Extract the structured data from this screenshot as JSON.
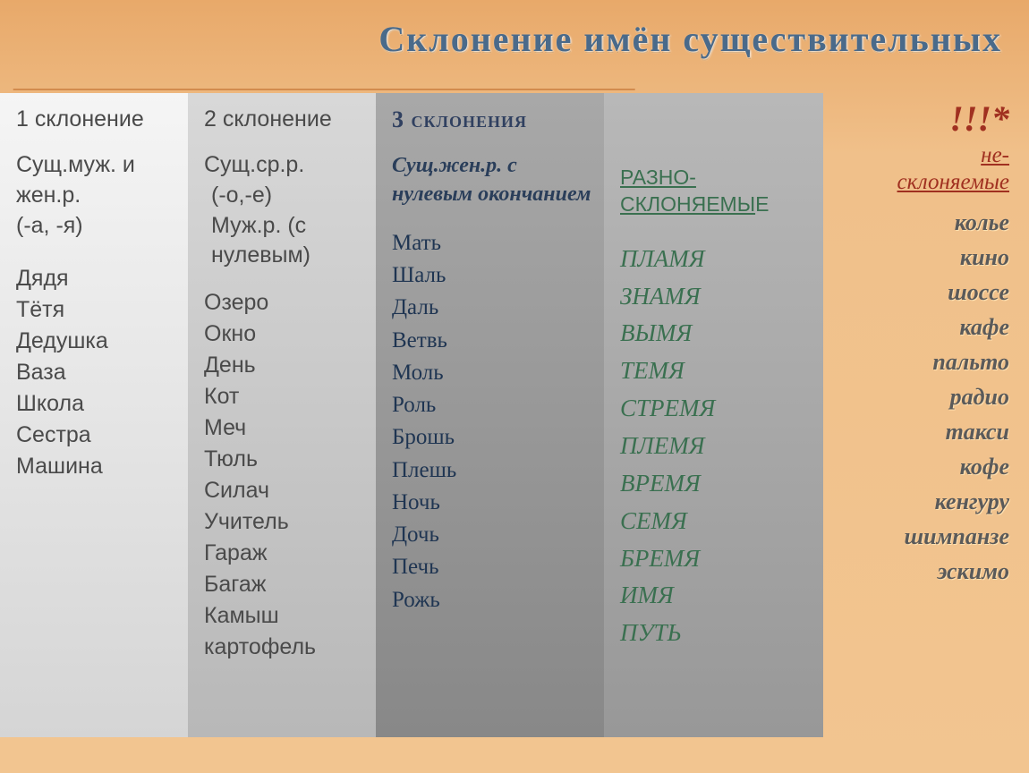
{
  "title": "Склонение  имён  существительных",
  "underline": "_______________________________________________________",
  "col1": {
    "header": "1 склонение",
    "desc": "Сущ.муж. и жен.р.\n(-а, -я)",
    "words": [
      "Дядя",
      "Тётя",
      "Дедушка",
      "Ваза",
      "Школа",
      "Сестра",
      "Машина"
    ]
  },
  "col2": {
    "header": "2 склонение",
    "desc": "Сущ.ср.р.\n(-о,-е)\nМуж.р. (с нулевым)",
    "words": [
      "Озеро",
      "Окно",
      "День",
      "Кот",
      "Меч",
      "Тюль",
      "Силач",
      "Учитель",
      "Гараж",
      "Багаж",
      "Камыш",
      "картофель"
    ]
  },
  "col3": {
    "header": "3 склонения",
    "desc": "Сущ.жен.р. с нулевым окончанием",
    "words": [
      "Мать",
      "Шаль",
      "Даль",
      "Ветвь",
      "Моль",
      "Роль",
      "Брошь",
      "Плешь",
      "Ночь",
      "Дочь",
      "Печь",
      "Рожь"
    ]
  },
  "col4": {
    "header_underlined": "РАЗНО-\nСКЛОНЯЕМЫ",
    "header_tail": "Е",
    "words": [
      "ПЛАМЯ",
      "ЗНАМЯ",
      "ВЫМЯ",
      "ТЕМЯ",
      "СТРЕМЯ",
      "ПЛЕМЯ",
      "ВРЕМЯ",
      "СЕМЯ",
      "БРЕМЯ",
      "ИМЯ",
      "ПУТЬ"
    ]
  },
  "col5": {
    "excl": "!!!*",
    "header": "не-\nсклоняемые",
    "words": [
      "колье",
      "кино",
      "шоссе",
      "кафе",
      "пальто",
      "радио",
      "такси",
      "кофе",
      "кенгуру",
      "шимпанзе",
      "эскимо"
    ]
  }
}
